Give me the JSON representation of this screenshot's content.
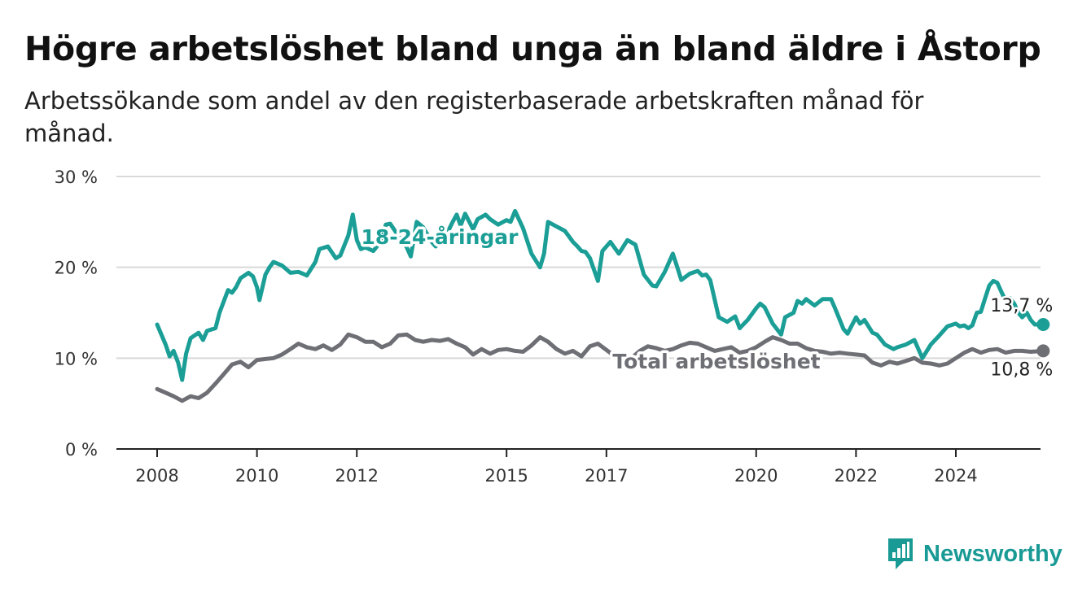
{
  "title": "Högre arbetslöshet bland unga än bland äldre i Åstorp",
  "subtitle": "Arbetssökande som andel av den registerbaserade arbetskraften månad för månad.",
  "brand": "Newsworthy",
  "colors": {
    "youth": "#1a9e96",
    "total": "#6e6e75",
    "grid": "#d9d9d9",
    "axis": "#222222",
    "brand": "#1a9a95"
  },
  "chart_data": {
    "type": "line",
    "ylim": [
      0,
      30
    ],
    "xlim": [
      2008,
      2025.75
    ],
    "y_ticks": [
      {
        "value": 0,
        "label": "0 %"
      },
      {
        "value": 10,
        "label": "10 %"
      },
      {
        "value": 20,
        "label": "20 %"
      },
      {
        "value": 30,
        "label": "30 %"
      }
    ],
    "x_ticks": [
      {
        "value": 2008,
        "label": "2008"
      },
      {
        "value": 2010,
        "label": "2010"
      },
      {
        "value": 2012,
        "label": "2012"
      },
      {
        "value": 2015,
        "label": "2015"
      },
      {
        "value": 2017,
        "label": "2017"
      },
      {
        "value": 2020,
        "label": "2020"
      },
      {
        "value": 2022,
        "label": "2022"
      },
      {
        "value": 2024,
        "label": "2024"
      }
    ],
    "grid": true,
    "series": [
      {
        "name": "18-24-åringar",
        "end_label": "13,7 %",
        "points": [
          [
            2008.0,
            13.7
          ],
          [
            2008.17,
            11.5
          ],
          [
            2008.25,
            10.2
          ],
          [
            2008.33,
            10.8
          ],
          [
            2008.42,
            9.5
          ],
          [
            2008.5,
            7.6
          ],
          [
            2008.58,
            10.5
          ],
          [
            2008.67,
            12.2
          ],
          [
            2008.83,
            12.8
          ],
          [
            2008.92,
            12.0
          ],
          [
            2009.0,
            13.0
          ],
          [
            2009.17,
            13.3
          ],
          [
            2009.25,
            15.0
          ],
          [
            2009.42,
            17.5
          ],
          [
            2009.5,
            17.2
          ],
          [
            2009.58,
            17.8
          ],
          [
            2009.67,
            18.8
          ],
          [
            2009.83,
            19.4
          ],
          [
            2009.92,
            19.0
          ],
          [
            2010.0,
            17.8
          ],
          [
            2010.05,
            16.4
          ],
          [
            2010.17,
            19.2
          ],
          [
            2010.25,
            20.0
          ],
          [
            2010.33,
            20.6
          ],
          [
            2010.5,
            20.2
          ],
          [
            2010.67,
            19.4
          ],
          [
            2010.83,
            19.5
          ],
          [
            2010.92,
            19.3
          ],
          [
            2011.0,
            19.1
          ],
          [
            2011.17,
            20.6
          ],
          [
            2011.25,
            22.0
          ],
          [
            2011.42,
            22.3
          ],
          [
            2011.58,
            21.0
          ],
          [
            2011.67,
            21.3
          ],
          [
            2011.83,
            23.5
          ],
          [
            2011.92,
            25.8
          ],
          [
            2012.0,
            23.0
          ],
          [
            2012.08,
            22.0
          ],
          [
            2012.17,
            22.2
          ],
          [
            2012.33,
            21.8
          ],
          [
            2012.5,
            23.0
          ],
          [
            2012.58,
            24.7
          ],
          [
            2012.67,
            24.8
          ],
          [
            2012.83,
            23.5
          ],
          [
            2013.0,
            22.2
          ],
          [
            2013.08,
            21.2
          ],
          [
            2013.2,
            25.0
          ],
          [
            2013.33,
            24.4
          ],
          [
            2013.5,
            22.8
          ],
          [
            2013.58,
            22.3
          ],
          [
            2013.67,
            23.0
          ],
          [
            2013.83,
            24.0
          ],
          [
            2013.92,
            25.0
          ],
          [
            2014.0,
            25.8
          ],
          [
            2014.08,
            24.6
          ],
          [
            2014.17,
            25.9
          ],
          [
            2014.33,
            24.2
          ],
          [
            2014.42,
            25.3
          ],
          [
            2014.58,
            25.8
          ],
          [
            2014.67,
            25.3
          ],
          [
            2014.83,
            24.7
          ],
          [
            2015.0,
            25.2
          ],
          [
            2015.08,
            25.0
          ],
          [
            2015.17,
            26.2
          ],
          [
            2015.33,
            24.3
          ],
          [
            2015.5,
            21.5
          ],
          [
            2015.67,
            20.0
          ],
          [
            2015.75,
            21.5
          ],
          [
            2015.83,
            25.0
          ],
          [
            2016.0,
            24.5
          ],
          [
            2016.17,
            24.0
          ],
          [
            2016.33,
            22.8
          ],
          [
            2016.42,
            22.3
          ],
          [
            2016.5,
            21.8
          ],
          [
            2016.58,
            21.7
          ],
          [
            2016.67,
            21.0
          ],
          [
            2016.83,
            18.5
          ],
          [
            2016.92,
            21.8
          ],
          [
            2017.08,
            22.8
          ],
          [
            2017.25,
            21.5
          ],
          [
            2017.42,
            23.0
          ],
          [
            2017.58,
            22.5
          ],
          [
            2017.75,
            19.2
          ],
          [
            2017.92,
            18.0
          ],
          [
            2018.0,
            17.9
          ],
          [
            2018.17,
            19.5
          ],
          [
            2018.33,
            21.5
          ],
          [
            2018.42,
            20.0
          ],
          [
            2018.5,
            18.6
          ],
          [
            2018.67,
            19.3
          ],
          [
            2018.83,
            19.6
          ],
          [
            2018.92,
            19.1
          ],
          [
            2019.0,
            19.2
          ],
          [
            2019.08,
            18.6
          ],
          [
            2019.25,
            14.5
          ],
          [
            2019.42,
            14.0
          ],
          [
            2019.58,
            14.6
          ],
          [
            2019.67,
            13.3
          ],
          [
            2019.83,
            14.2
          ],
          [
            2020.0,
            15.5
          ],
          [
            2020.08,
            16.0
          ],
          [
            2020.17,
            15.6
          ],
          [
            2020.33,
            13.8
          ],
          [
            2020.5,
            12.6
          ],
          [
            2020.58,
            14.5
          ],
          [
            2020.75,
            15.0
          ],
          [
            2020.83,
            16.3
          ],
          [
            2020.92,
            16.0
          ],
          [
            2021.0,
            16.5
          ],
          [
            2021.17,
            15.8
          ],
          [
            2021.33,
            16.5
          ],
          [
            2021.5,
            16.5
          ],
          [
            2021.58,
            15.5
          ],
          [
            2021.75,
            13.2
          ],
          [
            2021.83,
            12.7
          ],
          [
            2022.0,
            14.5
          ],
          [
            2022.08,
            13.8
          ],
          [
            2022.17,
            14.2
          ],
          [
            2022.33,
            12.8
          ],
          [
            2022.42,
            12.6
          ],
          [
            2022.58,
            11.5
          ],
          [
            2022.75,
            11.0
          ],
          [
            2022.83,
            11.2
          ],
          [
            2023.0,
            11.5
          ],
          [
            2023.17,
            12.0
          ],
          [
            2023.25,
            11.0
          ],
          [
            2023.33,
            10.0
          ],
          [
            2023.5,
            11.5
          ],
          [
            2023.67,
            12.5
          ],
          [
            2023.75,
            13.0
          ],
          [
            2023.83,
            13.5
          ],
          [
            2024.0,
            13.8
          ],
          [
            2024.08,
            13.5
          ],
          [
            2024.17,
            13.6
          ],
          [
            2024.25,
            13.3
          ],
          [
            2024.33,
            13.6
          ],
          [
            2024.42,
            15.0
          ],
          [
            2024.5,
            15.1
          ],
          [
            2024.58,
            16.5
          ],
          [
            2024.67,
            18.0
          ],
          [
            2024.75,
            18.5
          ],
          [
            2024.83,
            18.3
          ],
          [
            2024.92,
            17.2
          ],
          [
            2025.0,
            16.3
          ],
          [
            2025.08,
            16.6
          ],
          [
            2025.17,
            16.0
          ],
          [
            2025.25,
            15.0
          ],
          [
            2025.33,
            14.5
          ],
          [
            2025.42,
            15.0
          ],
          [
            2025.5,
            14.2
          ],
          [
            2025.58,
            13.7
          ],
          [
            2025.75,
            13.7
          ]
        ]
      },
      {
        "name": "Total arbetslöshet",
        "end_label": "10,8 %",
        "points": [
          [
            2008.0,
            6.6
          ],
          [
            2008.17,
            6.2
          ],
          [
            2008.33,
            5.8
          ],
          [
            2008.5,
            5.3
          ],
          [
            2008.67,
            5.8
          ],
          [
            2008.83,
            5.6
          ],
          [
            2009.0,
            6.2
          ],
          [
            2009.17,
            7.2
          ],
          [
            2009.33,
            8.2
          ],
          [
            2009.5,
            9.3
          ],
          [
            2009.67,
            9.6
          ],
          [
            2009.83,
            9.0
          ],
          [
            2010.0,
            9.8
          ],
          [
            2010.17,
            9.9
          ],
          [
            2010.33,
            10.0
          ],
          [
            2010.5,
            10.4
          ],
          [
            2010.67,
            11.0
          ],
          [
            2010.83,
            11.6
          ],
          [
            2011.0,
            11.2
          ],
          [
            2011.17,
            11.0
          ],
          [
            2011.33,
            11.4
          ],
          [
            2011.5,
            10.9
          ],
          [
            2011.67,
            11.5
          ],
          [
            2011.83,
            12.6
          ],
          [
            2012.0,
            12.3
          ],
          [
            2012.17,
            11.8
          ],
          [
            2012.33,
            11.8
          ],
          [
            2012.5,
            11.2
          ],
          [
            2012.67,
            11.6
          ],
          [
            2012.83,
            12.5
          ],
          [
            2013.0,
            12.6
          ],
          [
            2013.17,
            12.0
          ],
          [
            2013.33,
            11.8
          ],
          [
            2013.5,
            12.0
          ],
          [
            2013.67,
            11.9
          ],
          [
            2013.83,
            12.1
          ],
          [
            2014.0,
            11.6
          ],
          [
            2014.17,
            11.2
          ],
          [
            2014.33,
            10.4
          ],
          [
            2014.5,
            11.0
          ],
          [
            2014.67,
            10.5
          ],
          [
            2014.83,
            10.9
          ],
          [
            2015.0,
            11.0
          ],
          [
            2015.17,
            10.8
          ],
          [
            2015.33,
            10.7
          ],
          [
            2015.5,
            11.4
          ],
          [
            2015.67,
            12.3
          ],
          [
            2015.83,
            11.8
          ],
          [
            2016.0,
            11.0
          ],
          [
            2016.17,
            10.5
          ],
          [
            2016.33,
            10.8
          ],
          [
            2016.5,
            10.2
          ],
          [
            2016.67,
            11.3
          ],
          [
            2016.83,
            11.6
          ],
          [
            2017.0,
            10.9
          ],
          [
            2017.17,
            10.2
          ],
          [
            2017.33,
            9.9
          ],
          [
            2017.5,
            10.0
          ],
          [
            2017.67,
            10.8
          ],
          [
            2017.83,
            11.3
          ],
          [
            2018.0,
            11.1
          ],
          [
            2018.17,
            10.8
          ],
          [
            2018.33,
            11.0
          ],
          [
            2018.5,
            11.4
          ],
          [
            2018.67,
            11.7
          ],
          [
            2018.83,
            11.6
          ],
          [
            2019.0,
            11.2
          ],
          [
            2019.17,
            10.8
          ],
          [
            2019.33,
            11.0
          ],
          [
            2019.5,
            11.2
          ],
          [
            2019.67,
            10.6
          ],
          [
            2019.83,
            10.8
          ],
          [
            2020.0,
            11.2
          ],
          [
            2020.17,
            11.8
          ],
          [
            2020.33,
            12.3
          ],
          [
            2020.5,
            12.0
          ],
          [
            2020.67,
            11.6
          ],
          [
            2020.83,
            11.6
          ],
          [
            2021.0,
            11.1
          ],
          [
            2021.17,
            10.8
          ],
          [
            2021.33,
            10.7
          ],
          [
            2021.5,
            10.5
          ],
          [
            2021.67,
            10.6
          ],
          [
            2021.83,
            10.5
          ],
          [
            2022.0,
            10.4
          ],
          [
            2022.17,
            10.3
          ],
          [
            2022.33,
            9.5
          ],
          [
            2022.5,
            9.2
          ],
          [
            2022.67,
            9.6
          ],
          [
            2022.83,
            9.4
          ],
          [
            2023.0,
            9.7
          ],
          [
            2023.17,
            10.0
          ],
          [
            2023.33,
            9.5
          ],
          [
            2023.5,
            9.4
          ],
          [
            2023.67,
            9.2
          ],
          [
            2023.83,
            9.4
          ],
          [
            2024.0,
            10.0
          ],
          [
            2024.17,
            10.6
          ],
          [
            2024.33,
            11.0
          ],
          [
            2024.5,
            10.6
          ],
          [
            2024.67,
            10.9
          ],
          [
            2024.83,
            11.0
          ],
          [
            2025.0,
            10.6
          ],
          [
            2025.17,
            10.8
          ],
          [
            2025.33,
            10.8
          ],
          [
            2025.5,
            10.7
          ],
          [
            2025.75,
            10.8
          ]
        ]
      }
    ]
  }
}
